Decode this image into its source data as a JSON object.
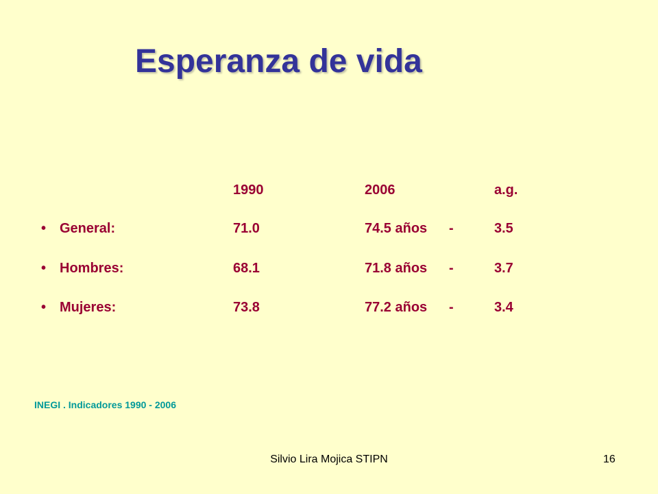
{
  "slide": {
    "title": "Esperanza de vida",
    "columns": {
      "y1990": "1990",
      "y2006": "2006",
      "ag": "a.g."
    },
    "rows": [
      {
        "bullet": "•",
        "label": "General:",
        "v1990": "71.0",
        "v2006": "74.5 años",
        "dash": "-",
        "ag": "3.5"
      },
      {
        "bullet": "•",
        "label": "Hombres:",
        "v1990": "68.1",
        "v2006": "71.8 años",
        "dash": "-",
        "ag": "3.7"
      },
      {
        "bullet": "•",
        "label": "Mujeres:",
        "v1990": "73.8",
        "v2006": "77.2 años",
        "dash": "-",
        "ag": "3.4"
      }
    ],
    "source": "INEGI . Indicadores 1990 - 2006"
  },
  "footer": {
    "author": "Silvio Lira Mojica STIPN",
    "page_number": "16"
  },
  "colors": {
    "background": "#FFFFCC",
    "title": "#333399",
    "body_text": "#990033",
    "source": "#009999"
  }
}
